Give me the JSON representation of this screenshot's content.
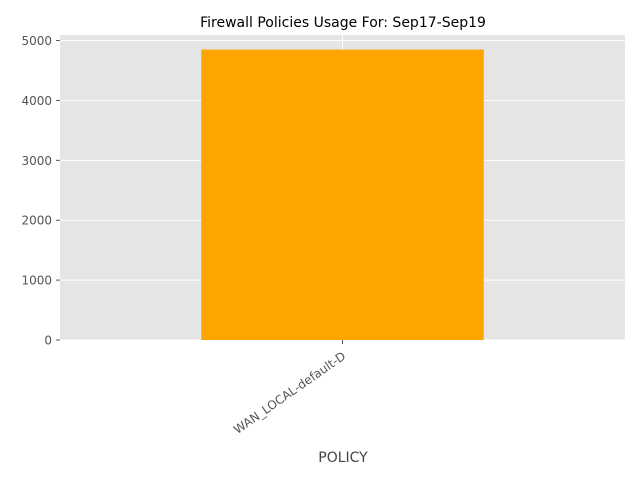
{
  "chart_data": {
    "type": "bar",
    "title": "Firewall Policies Usage For: Sep17-Sep19",
    "xlabel": "POLICY",
    "ylabel": "",
    "categories": [
      "WAN_LOCAL-default-D"
    ],
    "values": [
      4850
    ],
    "ylim": [
      0,
      5093
    ],
    "yticks": [
      0,
      1000,
      2000,
      3000,
      4000,
      5000
    ],
    "grid": true,
    "colors": {
      "bar": "#FFA500",
      "plot_background": "#E5E5E5",
      "grid": "#FFFFFF",
      "tick_label": "#555555",
      "title": "#000000"
    }
  }
}
